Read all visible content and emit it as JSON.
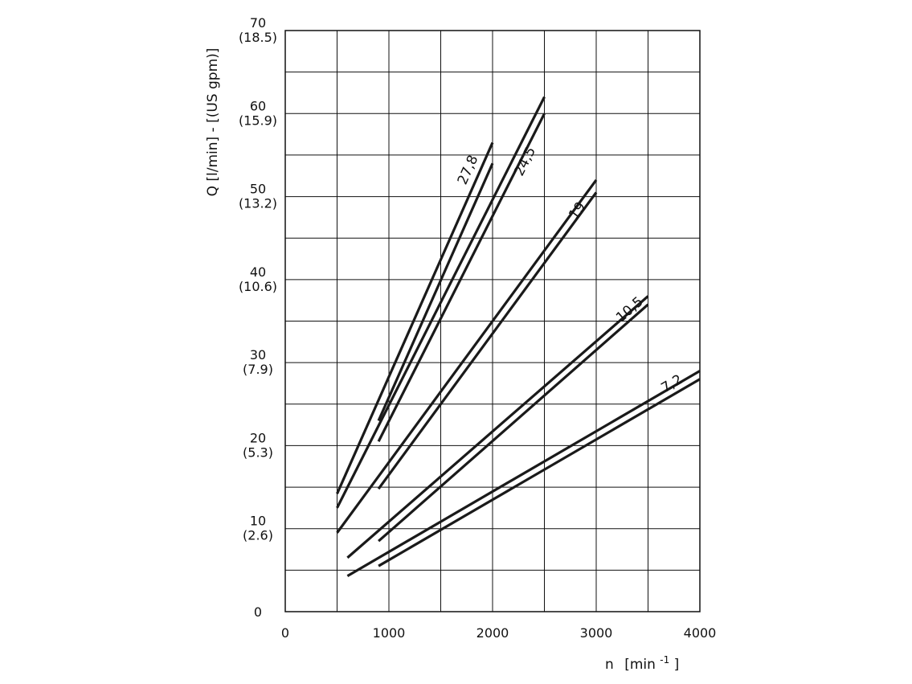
{
  "chart_data": {
    "type": "line",
    "xlabel": "n",
    "xlabel_unit": "[min",
    "xlabel_unit_exp": "-1",
    "xlabel_unit_close": "]",
    "ylabel": "Q [l/min] - [(US gpm)]",
    "xlim": [
      0,
      4000
    ],
    "ylim": [
      0,
      70
    ],
    "grid": true,
    "x_ticks": [
      {
        "value": 0,
        "label": "0"
      },
      {
        "value": 1000,
        "label": "1000"
      },
      {
        "value": 2000,
        "label": "2000"
      },
      {
        "value": 3000,
        "label": "3000"
      },
      {
        "value": 4000,
        "label": "4000"
      }
    ],
    "y_ticks": [
      {
        "value": 0,
        "label": "0",
        "sub": ""
      },
      {
        "value": 10,
        "label": "10",
        "sub": "(2.6)"
      },
      {
        "value": 20,
        "label": "20",
        "sub": "(5.3)"
      },
      {
        "value": 30,
        "label": "30",
        "sub": "(7.9)"
      },
      {
        "value": 40,
        "label": "40",
        "sub": "(10.6)"
      },
      {
        "value": 50,
        "label": "50",
        "sub": "(13.2)"
      },
      {
        "value": 60,
        "label": "60",
        "sub": "(15.9)"
      },
      {
        "value": 70,
        "label": "70",
        "sub": "(18.5)"
      }
    ],
    "series": [
      {
        "name": "27,8",
        "lines": [
          {
            "x": [
              500,
              2000
            ],
            "y": [
              14.2,
              56.5
            ]
          },
          {
            "x": [
              900,
              2000
            ],
            "y": [
              23,
              54
            ]
          }
        ]
      },
      {
        "name": "24,5",
        "lines": [
          {
            "x": [
              500,
              2500
            ],
            "y": [
              12.5,
              62
            ]
          },
          {
            "x": [
              900,
              2500
            ],
            "y": [
              20.5,
              60
            ]
          }
        ]
      },
      {
        "name": "19",
        "lines": [
          {
            "x": [
              500,
              3000
            ],
            "y": [
              9.5,
              52
            ]
          },
          {
            "x": [
              900,
              3000
            ],
            "y": [
              14.8,
              50.5
            ]
          }
        ]
      },
      {
        "name": "10,5",
        "lines": [
          {
            "x": [
              600,
              3500
            ],
            "y": [
              6.5,
              38
            ]
          },
          {
            "x": [
              900,
              3500
            ],
            "y": [
              8.5,
              37
            ]
          }
        ]
      },
      {
        "name": "7,2",
        "lines": [
          {
            "x": [
              600,
              4000
            ],
            "y": [
              4.3,
              29
            ]
          },
          {
            "x": [
              900,
              4000
            ],
            "y": [
              5.5,
              28
            ]
          }
        ]
      }
    ],
    "series_label_pos": [
      {
        "x": 1800,
        "y": 53
      },
      {
        "x": 2350,
        "y": 54
      },
      {
        "x": 2850,
        "y": 48
      },
      {
        "x": 3350,
        "y": 36
      },
      {
        "x": 3750,
        "y": 27
      }
    ]
  }
}
